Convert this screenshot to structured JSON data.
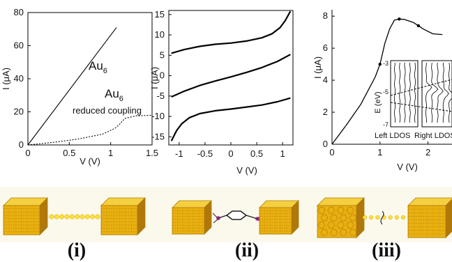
{
  "chart_data": [
    {
      "type": "line",
      "xlabel": "V (V)",
      "ylabel": "I (μA)",
      "xlim": [
        0,
        1.5
      ],
      "ylim": [
        0,
        80
      ],
      "x_ticks": [
        "0",
        "0.5",
        "1",
        "1.5"
      ],
      "y_ticks": [
        "0",
        "20",
        "40",
        "60",
        "80"
      ],
      "annotations": [
        {
          "main": "Au",
          "sub": "6"
        },
        {
          "main": "Au",
          "sub": "6"
        },
        {
          "text": "reduced coupling"
        }
      ],
      "series": [
        {
          "style": "solid",
          "x": [
            0,
            1.07
          ],
          "y": [
            0,
            71
          ]
        },
        {
          "style": "dotted",
          "x": [
            0,
            0.3,
            0.6,
            0.9,
            1.05,
            1.12,
            1.17,
            1.3,
            1.5
          ],
          "y": [
            0,
            1.5,
            3.5,
            6.5,
            10,
            13,
            16,
            17.5,
            18
          ]
        }
      ]
    },
    {
      "type": "line",
      "xlabel": "V (V)",
      "ylabel": "I (μA)",
      "xlim": [
        -1.2,
        1.2
      ],
      "ylim": [
        -17,
        16
      ],
      "x_ticks": [
        "-1",
        "-0.5",
        "0",
        "0.5",
        "1"
      ],
      "y_ticks": [
        "15",
        "10",
        "5",
        "0",
        "-5",
        "-10",
        "-15"
      ],
      "series": [
        {
          "x": [
            -1.15,
            -0.9,
            -0.6,
            -0.3,
            0,
            0.3,
            0.6,
            0.8,
            0.95,
            1.05,
            1.15
          ],
          "y": [
            5.5,
            6.4,
            7.2,
            7.7,
            8.0,
            8.5,
            9.3,
            10.3,
            11.8,
            13.5,
            15.8
          ]
        },
        {
          "x": [
            -1.15,
            -0.9,
            -0.6,
            -0.3,
            0,
            0.3,
            0.6,
            0.9,
            1.15
          ],
          "y": [
            -5.2,
            -3.8,
            -2.4,
            -1.3,
            -0.3,
            0.8,
            2.0,
            3.5,
            5.2
          ]
        },
        {
          "x": [
            -1.15,
            -1.05,
            -0.95,
            -0.8,
            -0.6,
            -0.3,
            0,
            0.3,
            0.6,
            0.9,
            1.15
          ],
          "y": [
            -16.0,
            -13.5,
            -11.8,
            -10.3,
            -9.3,
            -8.6,
            -8.2,
            -7.7,
            -7.2,
            -6.4,
            -5.5
          ]
        }
      ]
    },
    {
      "type": "line",
      "xlabel": "V (V)",
      "ylabel": "I (μA)",
      "xlim": [
        0,
        2.5
      ],
      "ylim": [
        0,
        8.4
      ],
      "x_ticks": [
        "0",
        "1",
        "2"
      ],
      "y_ticks": [
        "0",
        "2",
        "4",
        "6",
        "8"
      ],
      "series": [
        {
          "x": [
            0,
            0.3,
            0.6,
            0.9,
            1.0,
            1.1,
            1.2,
            1.3,
            1.4,
            1.5,
            1.7,
            1.9,
            2.1,
            2.3
          ],
          "y": [
            0,
            1.2,
            2.5,
            4.2,
            5.0,
            6.3,
            7.2,
            7.75,
            7.82,
            7.8,
            7.6,
            7.2,
            6.9,
            6.85
          ],
          "markers": [
            1.0,
            1.4,
            1.8
          ]
        }
      ],
      "inset": {
        "ylabel": "E (eV)",
        "y_ticks": [
          "-3",
          "-5",
          "-7"
        ],
        "xlabels": [
          "Left LDOS",
          "Right LDOS"
        ]
      }
    }
  ],
  "panel_labels": [
    "(i)",
    "(ii)",
    "(iii)"
  ],
  "colors": {
    "gold": "#e8b010",
    "gold_top": "#f4d040",
    "gold_dark": "#b07808",
    "chain_atom": "#ffe23a",
    "molecule_atom": "#d040c0",
    "panel_bg": "#fbf9ec"
  }
}
